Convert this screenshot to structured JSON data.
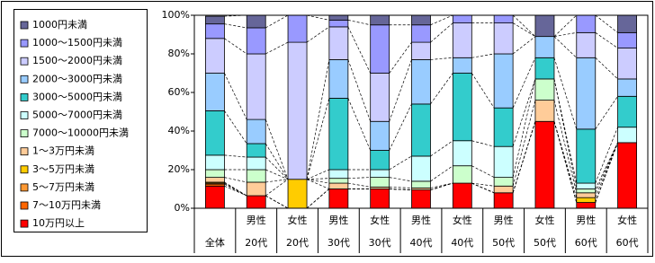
{
  "chart_data": {
    "type": "stacked_bar_100",
    "categories": [
      [
        "全体"
      ],
      [
        "男性",
        "20代"
      ],
      [
        "女性",
        "20代"
      ],
      [
        "男性",
        "30代"
      ],
      [
        "女性",
        "30代"
      ],
      [
        "男性",
        "40代"
      ],
      [
        "女性",
        "40代"
      ],
      [
        "男性",
        "50代"
      ],
      [
        "女性",
        "50代"
      ],
      [
        "男性",
        "60代"
      ],
      [
        "女性",
        "60代"
      ]
    ],
    "ylim": [
      0,
      100
    ],
    "yticks": [
      {
        "value": 0,
        "label": "0%"
      },
      {
        "value": 20,
        "label": "20%"
      },
      {
        "value": 40,
        "label": "40%"
      },
      {
        "value": 60,
        "label": "60%"
      },
      {
        "value": 80,
        "label": "80%"
      },
      {
        "value": 100,
        "label": "100%"
      }
    ],
    "series_lines": true,
    "series": [
      {
        "name": "10万円以上",
        "color": "#ff0000",
        "values": [
          11.5,
          6.5,
          0,
          10,
          10,
          9.5,
          13,
          8,
          45,
          3,
          34
        ]
      },
      {
        "name": "7～10万円未満",
        "color": "#ff6600",
        "values": [
          1,
          0,
          0,
          0,
          0,
          0,
          0,
          0,
          0,
          0,
          0
        ]
      },
      {
        "name": "5～7万円未満",
        "color": "#ff9933",
        "values": [
          0.5,
          0,
          0,
          0,
          0,
          0,
          0,
          0,
          0,
          0,
          0
        ]
      },
      {
        "name": "3～5万円未満",
        "color": "#ffcc00",
        "values": [
          0.5,
          0,
          15,
          0,
          0,
          0,
          0,
          0,
          0,
          2.5,
          0
        ]
      },
      {
        "name": "1～3万円未満",
        "color": "#ffcc99",
        "values": [
          2.5,
          7,
          0,
          3,
          1,
          1,
          0,
          3.5,
          11,
          2.5,
          0
        ]
      },
      {
        "name": "7000～10000円未満",
        "color": "#ccffcc",
        "values": [
          4,
          6.5,
          0,
          2.5,
          5,
          3.5,
          9,
          4.5,
          11,
          2,
          0
        ]
      },
      {
        "name": "5000～7000円未満",
        "color": "#ccffff",
        "values": [
          7.5,
          6.5,
          0,
          4.5,
          4,
          13,
          13,
          16,
          0,
          3,
          8
        ]
      },
      {
        "name": "3000～5000円未満",
        "color": "#33cccc",
        "values": [
          23,
          7,
          0,
          37,
          10,
          27,
          35,
          20,
          11,
          28,
          16
        ]
      },
      {
        "name": "2000～3000円未満",
        "color": "#99ccff",
        "values": [
          19.5,
          12.5,
          0,
          20,
          15,
          23,
          8,
          28,
          11,
          37,
          9
        ]
      },
      {
        "name": "1500～2000円未満",
        "color": "#ccccff",
        "values": [
          18,
          34,
          71,
          17,
          25,
          9,
          18,
          16,
          0,
          13,
          16
        ]
      },
      {
        "name": "1000～1500円未満",
        "color": "#9999ff",
        "values": [
          7.5,
          13.5,
          14,
          3.5,
          25,
          9,
          4,
          4,
          0,
          9,
          8
        ]
      },
      {
        "name": "1000円未満",
        "color": "#666699",
        "values": [
          4,
          6.5,
          0,
          2.5,
          5,
          5,
          0,
          0,
          11,
          0,
          9
        ]
      }
    ]
  }
}
